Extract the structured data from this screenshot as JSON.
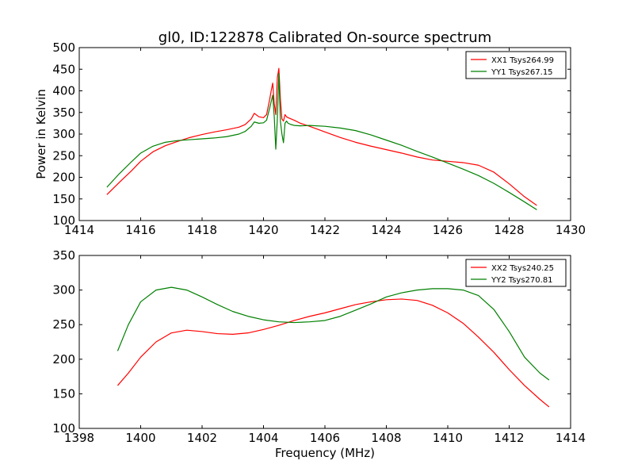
{
  "chart_data": [
    {
      "type": "line",
      "title": "gl0, ID:122878 Calibrated On-source spectrum",
      "xlabel": "",
      "ylabel": "Power in Kelvin",
      "xlim": [
        1414,
        1430
      ],
      "ylim": [
        100,
        500
      ],
      "xticks": [
        "1414",
        "1416",
        "1418",
        "1420",
        "1422",
        "1424",
        "1426",
        "1428",
        "1430"
      ],
      "yticks": [
        "100",
        "150",
        "200",
        "250",
        "300",
        "350",
        "400",
        "450",
        "500"
      ],
      "legend_position": "top-right",
      "series": [
        {
          "name": "XX1 Tsys264.99",
          "color": "#ff0000",
          "x": [
            1414.9,
            1415.3,
            1415.7,
            1416.0,
            1416.4,
            1416.8,
            1417.2,
            1417.6,
            1418.0,
            1418.4,
            1418.8,
            1419.2,
            1419.4,
            1419.6,
            1419.7,
            1419.85,
            1420.0,
            1420.1,
            1420.2,
            1420.25,
            1420.3,
            1420.35,
            1420.4,
            1420.45,
            1420.5,
            1420.55,
            1420.6,
            1420.65,
            1420.7,
            1420.75,
            1420.8,
            1420.9,
            1421.0,
            1421.2,
            1421.5,
            1422.0,
            1422.5,
            1423.0,
            1423.5,
            1424.0,
            1424.5,
            1425.0,
            1425.5,
            1426.0,
            1426.5,
            1427.0,
            1427.5,
            1428.0,
            1428.5,
            1428.9
          ],
          "values": [
            160,
            188,
            215,
            237,
            259,
            273,
            283,
            292,
            299,
            305,
            310,
            316,
            322,
            335,
            348,
            340,
            338,
            345,
            380,
            400,
            418,
            370,
            345,
            430,
            452,
            380,
            335,
            330,
            345,
            340,
            338,
            335,
            332,
            325,
            318,
            305,
            292,
            281,
            272,
            264,
            256,
            247,
            240,
            237,
            234,
            228,
            212,
            185,
            155,
            135
          ]
        },
        {
          "name": "YY1 Tsys267.15",
          "color": "#008000",
          "x": [
            1414.9,
            1415.3,
            1415.7,
            1416.0,
            1416.4,
            1416.8,
            1417.2,
            1417.6,
            1418.0,
            1418.4,
            1418.8,
            1419.2,
            1419.4,
            1419.6,
            1419.7,
            1419.85,
            1420.0,
            1420.1,
            1420.2,
            1420.3,
            1420.35,
            1420.4,
            1420.45,
            1420.5,
            1420.55,
            1420.6,
            1420.65,
            1420.7,
            1420.75,
            1420.8,
            1420.9,
            1421.0,
            1421.2,
            1421.5,
            1422.0,
            1422.5,
            1423.0,
            1423.5,
            1424.0,
            1424.5,
            1425.0,
            1425.5,
            1426.0,
            1426.5,
            1427.0,
            1427.5,
            1428.0,
            1428.5,
            1428.9
          ],
          "values": [
            177,
            208,
            236,
            256,
            272,
            281,
            285,
            287,
            289,
            291,
            294,
            300,
            306,
            318,
            328,
            325,
            326,
            332,
            360,
            390,
            340,
            265,
            335,
            440,
            330,
            300,
            280,
            325,
            330,
            325,
            322,
            320,
            319,
            320,
            318,
            314,
            308,
            298,
            286,
            274,
            260,
            247,
            233,
            219,
            204,
            186,
            165,
            143,
            125
          ]
        }
      ]
    },
    {
      "type": "line",
      "title": "",
      "xlabel": "Frequency (MHz)",
      "ylabel": "",
      "xlim": [
        1398,
        1414
      ],
      "ylim": [
        100,
        350
      ],
      "xticks": [
        "1398",
        "1400",
        "1402",
        "1404",
        "1406",
        "1408",
        "1410",
        "1412",
        "1414"
      ],
      "yticks": [
        "100",
        "150",
        "200",
        "250",
        "300",
        "350"
      ],
      "legend_position": "top-right",
      "series": [
        {
          "name": "XX2 Tsys240.25",
          "color": "#ff0000",
          "x": [
            1399.25,
            1399.6,
            1400.0,
            1400.5,
            1401.0,
            1401.5,
            1402.0,
            1402.5,
            1403.0,
            1403.5,
            1404.0,
            1404.5,
            1405.0,
            1405.5,
            1406.0,
            1406.5,
            1407.0,
            1407.5,
            1408.0,
            1408.5,
            1409.0,
            1409.5,
            1410.0,
            1410.5,
            1411.0,
            1411.5,
            1412.0,
            1412.5,
            1413.0,
            1413.3
          ],
          "values": [
            162,
            180,
            203,
            225,
            238,
            242,
            240,
            237,
            236,
            238,
            243,
            249,
            256,
            262,
            267,
            273,
            279,
            283,
            286,
            287,
            285,
            278,
            267,
            252,
            232,
            210,
            185,
            162,
            142,
            131
          ]
        },
        {
          "name": "YY2 Tsys270.81",
          "color": "#008000",
          "x": [
            1399.25,
            1399.6,
            1400.0,
            1400.5,
            1401.0,
            1401.5,
            1402.0,
            1402.5,
            1403.0,
            1403.5,
            1404.0,
            1404.5,
            1405.0,
            1405.5,
            1406.0,
            1406.5,
            1407.0,
            1407.5,
            1408.0,
            1408.5,
            1409.0,
            1409.5,
            1410.0,
            1410.5,
            1411.0,
            1411.5,
            1412.0,
            1412.5,
            1413.0,
            1413.3
          ],
          "values": [
            212,
            250,
            283,
            300,
            304,
            300,
            290,
            279,
            269,
            262,
            257,
            254,
            253,
            254,
            256,
            262,
            271,
            280,
            290,
            296,
            300,
            302,
            302,
            300,
            292,
            272,
            240,
            203,
            180,
            170
          ]
        }
      ]
    }
  ]
}
